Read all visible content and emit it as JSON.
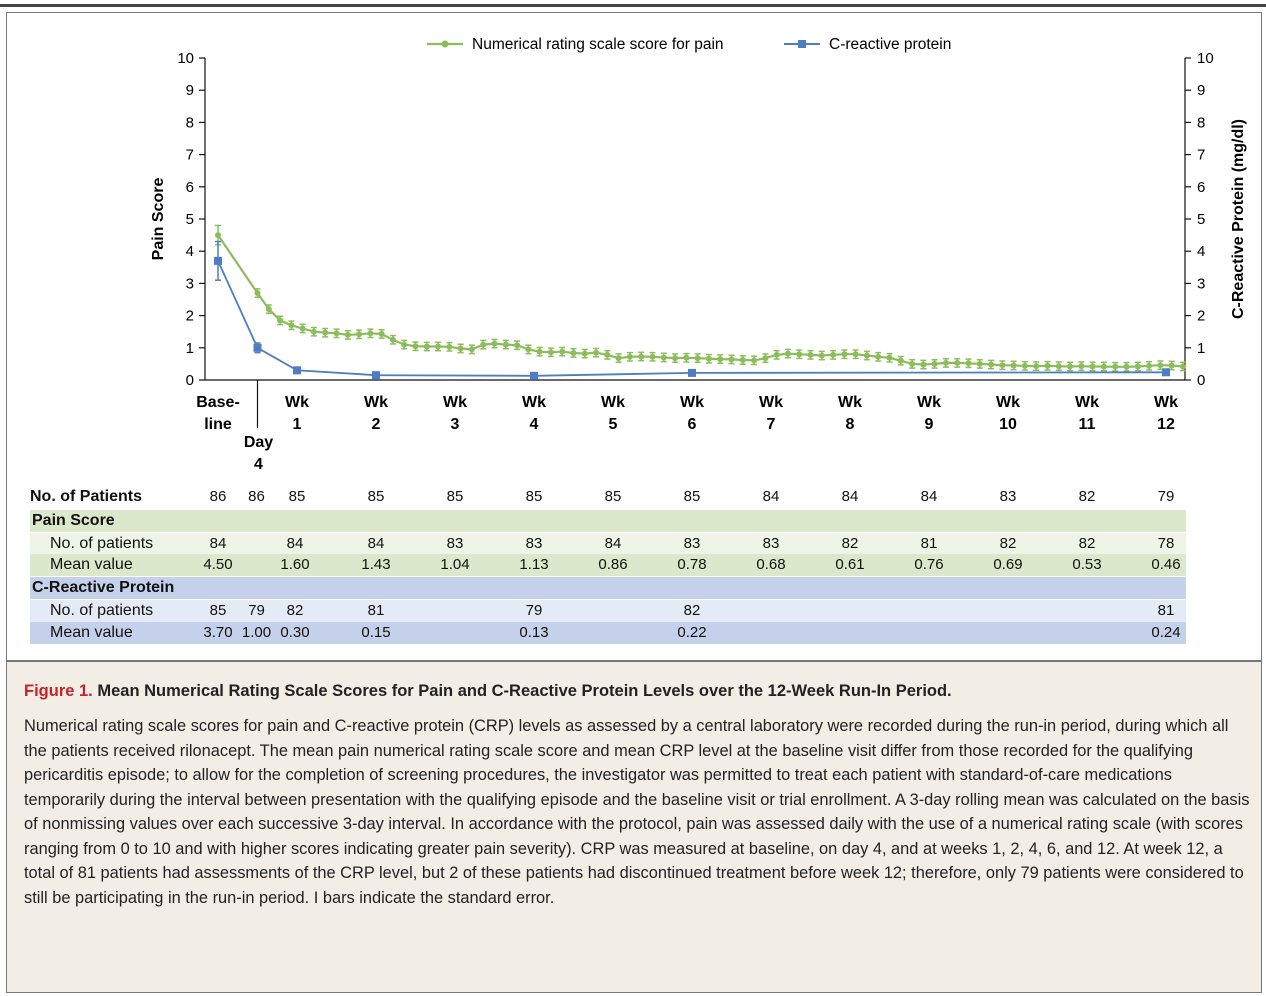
{
  "chart_data": {
    "type": "line",
    "series": [
      {
        "name": "Numerical rating scale score for pain",
        "color": "#8bbd5a",
        "axis": "left",
        "x": [
          0,
          0.5,
          0.643,
          0.786,
          0.929,
          1.071,
          1.214,
          1.357,
          1.5,
          1.643,
          1.786,
          1.929,
          2.071,
          2.214,
          2.357,
          2.5,
          2.643,
          2.786,
          2.929,
          3.071,
          3.214,
          3.357,
          3.5,
          3.643,
          3.786,
          3.929,
          4.071,
          4.214,
          4.357,
          4.5,
          4.643,
          4.786,
          4.929,
          5.071,
          5.214,
          5.357,
          5.5,
          5.643,
          5.786,
          5.929,
          6.071,
          6.214,
          6.357,
          6.5,
          6.643,
          6.786,
          6.929,
          7.071,
          7.214,
          7.357,
          7.5,
          7.643,
          7.786,
          7.929,
          8.071,
          8.214,
          8.357,
          8.5,
          8.643,
          8.786,
          8.929,
          9.071,
          9.214,
          9.357,
          9.5,
          9.643,
          9.786,
          9.929,
          10.071,
          10.214,
          10.357,
          10.5,
          10.643,
          10.786,
          10.929,
          11.071,
          11.214,
          11.357,
          11.5,
          11.643,
          11.786,
          11.929,
          12.071,
          12.214
        ],
        "values": [
          4.5,
          2.7,
          2.2,
          1.85,
          1.7,
          1.6,
          1.5,
          1.47,
          1.45,
          1.4,
          1.42,
          1.45,
          1.43,
          1.25,
          1.1,
          1.05,
          1.04,
          1.04,
          1.03,
          0.98,
          0.95,
          1.1,
          1.13,
          1.1,
          1.08,
          0.95,
          0.88,
          0.86,
          0.88,
          0.84,
          0.82,
          0.85,
          0.78,
          0.68,
          0.72,
          0.73,
          0.72,
          0.7,
          0.68,
          0.69,
          0.68,
          0.66,
          0.65,
          0.64,
          0.62,
          0.61,
          0.68,
          0.78,
          0.82,
          0.8,
          0.78,
          0.76,
          0.78,
          0.8,
          0.8,
          0.76,
          0.72,
          0.69,
          0.6,
          0.5,
          0.48,
          0.5,
          0.53,
          0.53,
          0.52,
          0.5,
          0.48,
          0.46,
          0.45,
          0.44,
          0.43,
          0.44,
          0.43,
          0.42,
          0.43,
          0.42,
          0.42,
          0.41,
          0.41,
          0.42,
          0.44,
          0.46,
          0.45,
          0.42
        ],
        "error": 0.13
      },
      {
        "name": "C-reactive protein",
        "color": "#4e7dc1",
        "axis": "right",
        "x": [
          0,
          0.5,
          1,
          2,
          4,
          6,
          12
        ],
        "values": [
          3.7,
          1.0,
          0.3,
          0.15,
          0.13,
          0.22,
          0.24
        ],
        "errors": [
          0.6,
          0.15,
          0.03,
          0.02,
          0.02,
          0.03,
          0.03
        ]
      }
    ],
    "ylabel_left": "Pain Score",
    "ylabel_right": "C-Reactive Protein (mg/dl)",
    "ylim": [
      0,
      10
    ],
    "yticks": [
      "0",
      "1",
      "2",
      "3",
      "4",
      "5",
      "6",
      "7",
      "8",
      "9",
      "10"
    ],
    "xlim": [
      0,
      12
    ],
    "xticks": [
      {
        "x": 0,
        "lines": [
          "Base-",
          "line"
        ]
      },
      {
        "x": 0.5,
        "lines": [
          "Day",
          "4"
        ]
      },
      {
        "x": 1,
        "lines": [
          "Wk",
          "1"
        ]
      },
      {
        "x": 2,
        "lines": [
          "Wk",
          "2"
        ]
      },
      {
        "x": 3,
        "lines": [
          "Wk",
          "3"
        ]
      },
      {
        "x": 4,
        "lines": [
          "Wk",
          "4"
        ]
      },
      {
        "x": 5,
        "lines": [
          "Wk",
          "5"
        ]
      },
      {
        "x": 6,
        "lines": [
          "Wk",
          "6"
        ]
      },
      {
        "x": 7,
        "lines": [
          "Wk",
          "7"
        ]
      },
      {
        "x": 8,
        "lines": [
          "Wk",
          "8"
        ]
      },
      {
        "x": 9,
        "lines": [
          "Wk",
          "9"
        ]
      },
      {
        "x": 10,
        "lines": [
          "Wk",
          "10"
        ]
      },
      {
        "x": 11,
        "lines": [
          "Wk",
          "11"
        ]
      },
      {
        "x": 12,
        "lines": [
          "Wk",
          "12"
        ]
      }
    ],
    "legend_position": "top-center",
    "grid": false
  },
  "table": {
    "no_patients_label": "No. of Patients",
    "no_patients": [
      {
        "x": 0,
        "v": "86"
      },
      {
        "x": 0.5,
        "v": "86"
      },
      {
        "x": 1,
        "v": "85"
      },
      {
        "x": 2,
        "v": "85"
      },
      {
        "x": 3,
        "v": "85"
      },
      {
        "x": 4,
        "v": "85"
      },
      {
        "x": 5,
        "v": "85"
      },
      {
        "x": 6,
        "v": "85"
      },
      {
        "x": 7,
        "v": "84"
      },
      {
        "x": 8,
        "v": "84"
      },
      {
        "x": 9,
        "v": "84"
      },
      {
        "x": 10,
        "v": "83"
      },
      {
        "x": 11,
        "v": "82"
      },
      {
        "x": 12,
        "v": "79"
      }
    ],
    "pain_header": "Pain Score",
    "pain_n_label": "No. of patients",
    "pain_n": [
      {
        "x": 0,
        "v": "84"
      },
      {
        "x": 1,
        "v": "84"
      },
      {
        "x": 2,
        "v": "84"
      },
      {
        "x": 3,
        "v": "83"
      },
      {
        "x": 4,
        "v": "83"
      },
      {
        "x": 5,
        "v": "84"
      },
      {
        "x": 6,
        "v": "83"
      },
      {
        "x": 7,
        "v": "83"
      },
      {
        "x": 8,
        "v": "82"
      },
      {
        "x": 9,
        "v": "81"
      },
      {
        "x": 10,
        "v": "82"
      },
      {
        "x": 11,
        "v": "82"
      },
      {
        "x": 12,
        "v": "78"
      }
    ],
    "pain_mean_label": "Mean value",
    "pain_mean": [
      {
        "x": 0,
        "v": "4.50"
      },
      {
        "x": 1,
        "v": "1.60"
      },
      {
        "x": 2,
        "v": "1.43"
      },
      {
        "x": 3,
        "v": "1.04"
      },
      {
        "x": 4,
        "v": "1.13"
      },
      {
        "x": 5,
        "v": "0.86"
      },
      {
        "x": 6,
        "v": "0.78"
      },
      {
        "x": 7,
        "v": "0.68"
      },
      {
        "x": 8,
        "v": "0.61"
      },
      {
        "x": 9,
        "v": "0.76"
      },
      {
        "x": 10,
        "v": "0.69"
      },
      {
        "x": 11,
        "v": "0.53"
      },
      {
        "x": 12,
        "v": "0.46"
      }
    ],
    "crp_header": "C-Reactive Protein",
    "crp_n_label": "No. of patients",
    "crp_n": [
      {
        "x": 0,
        "v": "85"
      },
      {
        "x": 0.5,
        "v": "79"
      },
      {
        "x": 1,
        "v": "82"
      },
      {
        "x": 2,
        "v": "81"
      },
      {
        "x": 4,
        "v": "79"
      },
      {
        "x": 6,
        "v": "82"
      },
      {
        "x": 12,
        "v": "81"
      }
    ],
    "crp_mean_label": "Mean value",
    "crp_mean": [
      {
        "x": 0,
        "v": "3.70"
      },
      {
        "x": 0.5,
        "v": "1.00"
      },
      {
        "x": 1,
        "v": "0.30"
      },
      {
        "x": 2,
        "v": "0.15"
      },
      {
        "x": 4,
        "v": "0.13"
      },
      {
        "x": 6,
        "v": "0.22"
      },
      {
        "x": 12,
        "v": "0.24"
      }
    ]
  },
  "caption": {
    "figure_label": "Figure 1.",
    "title": " Mean Numerical Rating Scale Scores for Pain and C-Reactive Protein Levels over the 12-Week Run-In Period.",
    "body": "Numerical rating scale scores for pain and C-reactive protein (CRP) levels as assessed by a central laboratory were recorded during the run-in period, during which all the patients received rilonacept. The mean pain numerical rating scale score and mean CRP level at the baseline visit differ from those recorded for the qualifying pericarditis episode; to allow for the completion of screening procedures, the investigator was permitted to treat each patient with standard-of-care medications temporarily during the interval between presentation with the qualifying episode and the baseline visit or trial enrollment. A 3-day rolling mean was calculated on the basis of nonmissing values over each successive 3-day interval. In accordance with the protocol, pain was assessed daily with the use of a numerical rating scale (with scores ranging from 0 to 10 and with higher scores indicating greater pain severity). CRP was measured at baseline, on day 4, and at weeks 1, 2, 4, 6, and 12. At week 12, a total of 81 patients had assessments of the CRP level, but 2 of these patients had discontinued treatment before week 12; therefore, only 79 patients were considered to still be participating in the run-in period. I bars indicate the standard error."
  }
}
